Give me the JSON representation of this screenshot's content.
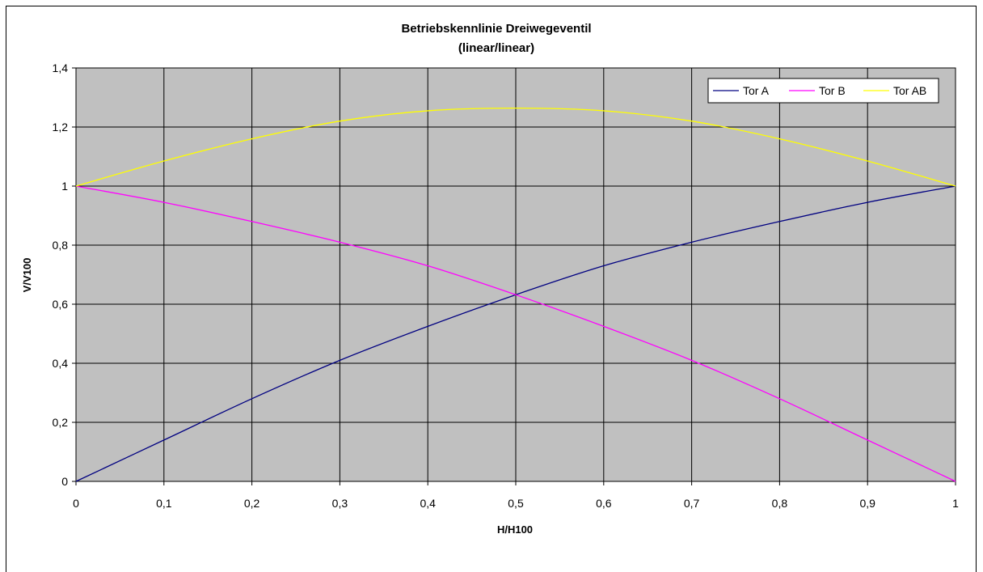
{
  "chart_data": {
    "type": "line",
    "title": "Betriebskennlinie Dreiwegeventil",
    "subtitle": "(linear/linear)",
    "xlabel": "H/H100",
    "ylabel": "V/V100",
    "xlim": [
      0,
      1
    ],
    "ylim": [
      0,
      1.4
    ],
    "x_ticks": [
      "0",
      "0,1",
      "0,2",
      "0,3",
      "0,4",
      "0,5",
      "0,6",
      "0,7",
      "0,8",
      "0,9",
      "1"
    ],
    "y_ticks": [
      "0",
      "0,2",
      "0,4",
      "0,6",
      "0,8",
      "1",
      "1,2",
      "1,4"
    ],
    "grid": true,
    "legend_position": "top-right",
    "plot_background": "#c0c0c0",
    "x": [
      0,
      0.1,
      0.2,
      0.3,
      0.4,
      0.5,
      0.6,
      0.7,
      0.8,
      0.9,
      1
    ],
    "series": [
      {
        "name": "Tor A",
        "color": "#000080",
        "values": [
          0,
          0.14,
          0.28,
          0.41,
          0.525,
          0.632,
          0.73,
          0.81,
          0.88,
          0.945,
          1
        ]
      },
      {
        "name": "Tor B",
        "color": "#ff00ff",
        "values": [
          1,
          0.945,
          0.88,
          0.81,
          0.73,
          0.632,
          0.525,
          0.41,
          0.28,
          0.14,
          0
        ]
      },
      {
        "name": "Tor AB",
        "color": "#ffff00",
        "values": [
          1,
          1.085,
          1.16,
          1.22,
          1.255,
          1.264,
          1.255,
          1.22,
          1.16,
          1.085,
          1
        ]
      }
    ]
  }
}
